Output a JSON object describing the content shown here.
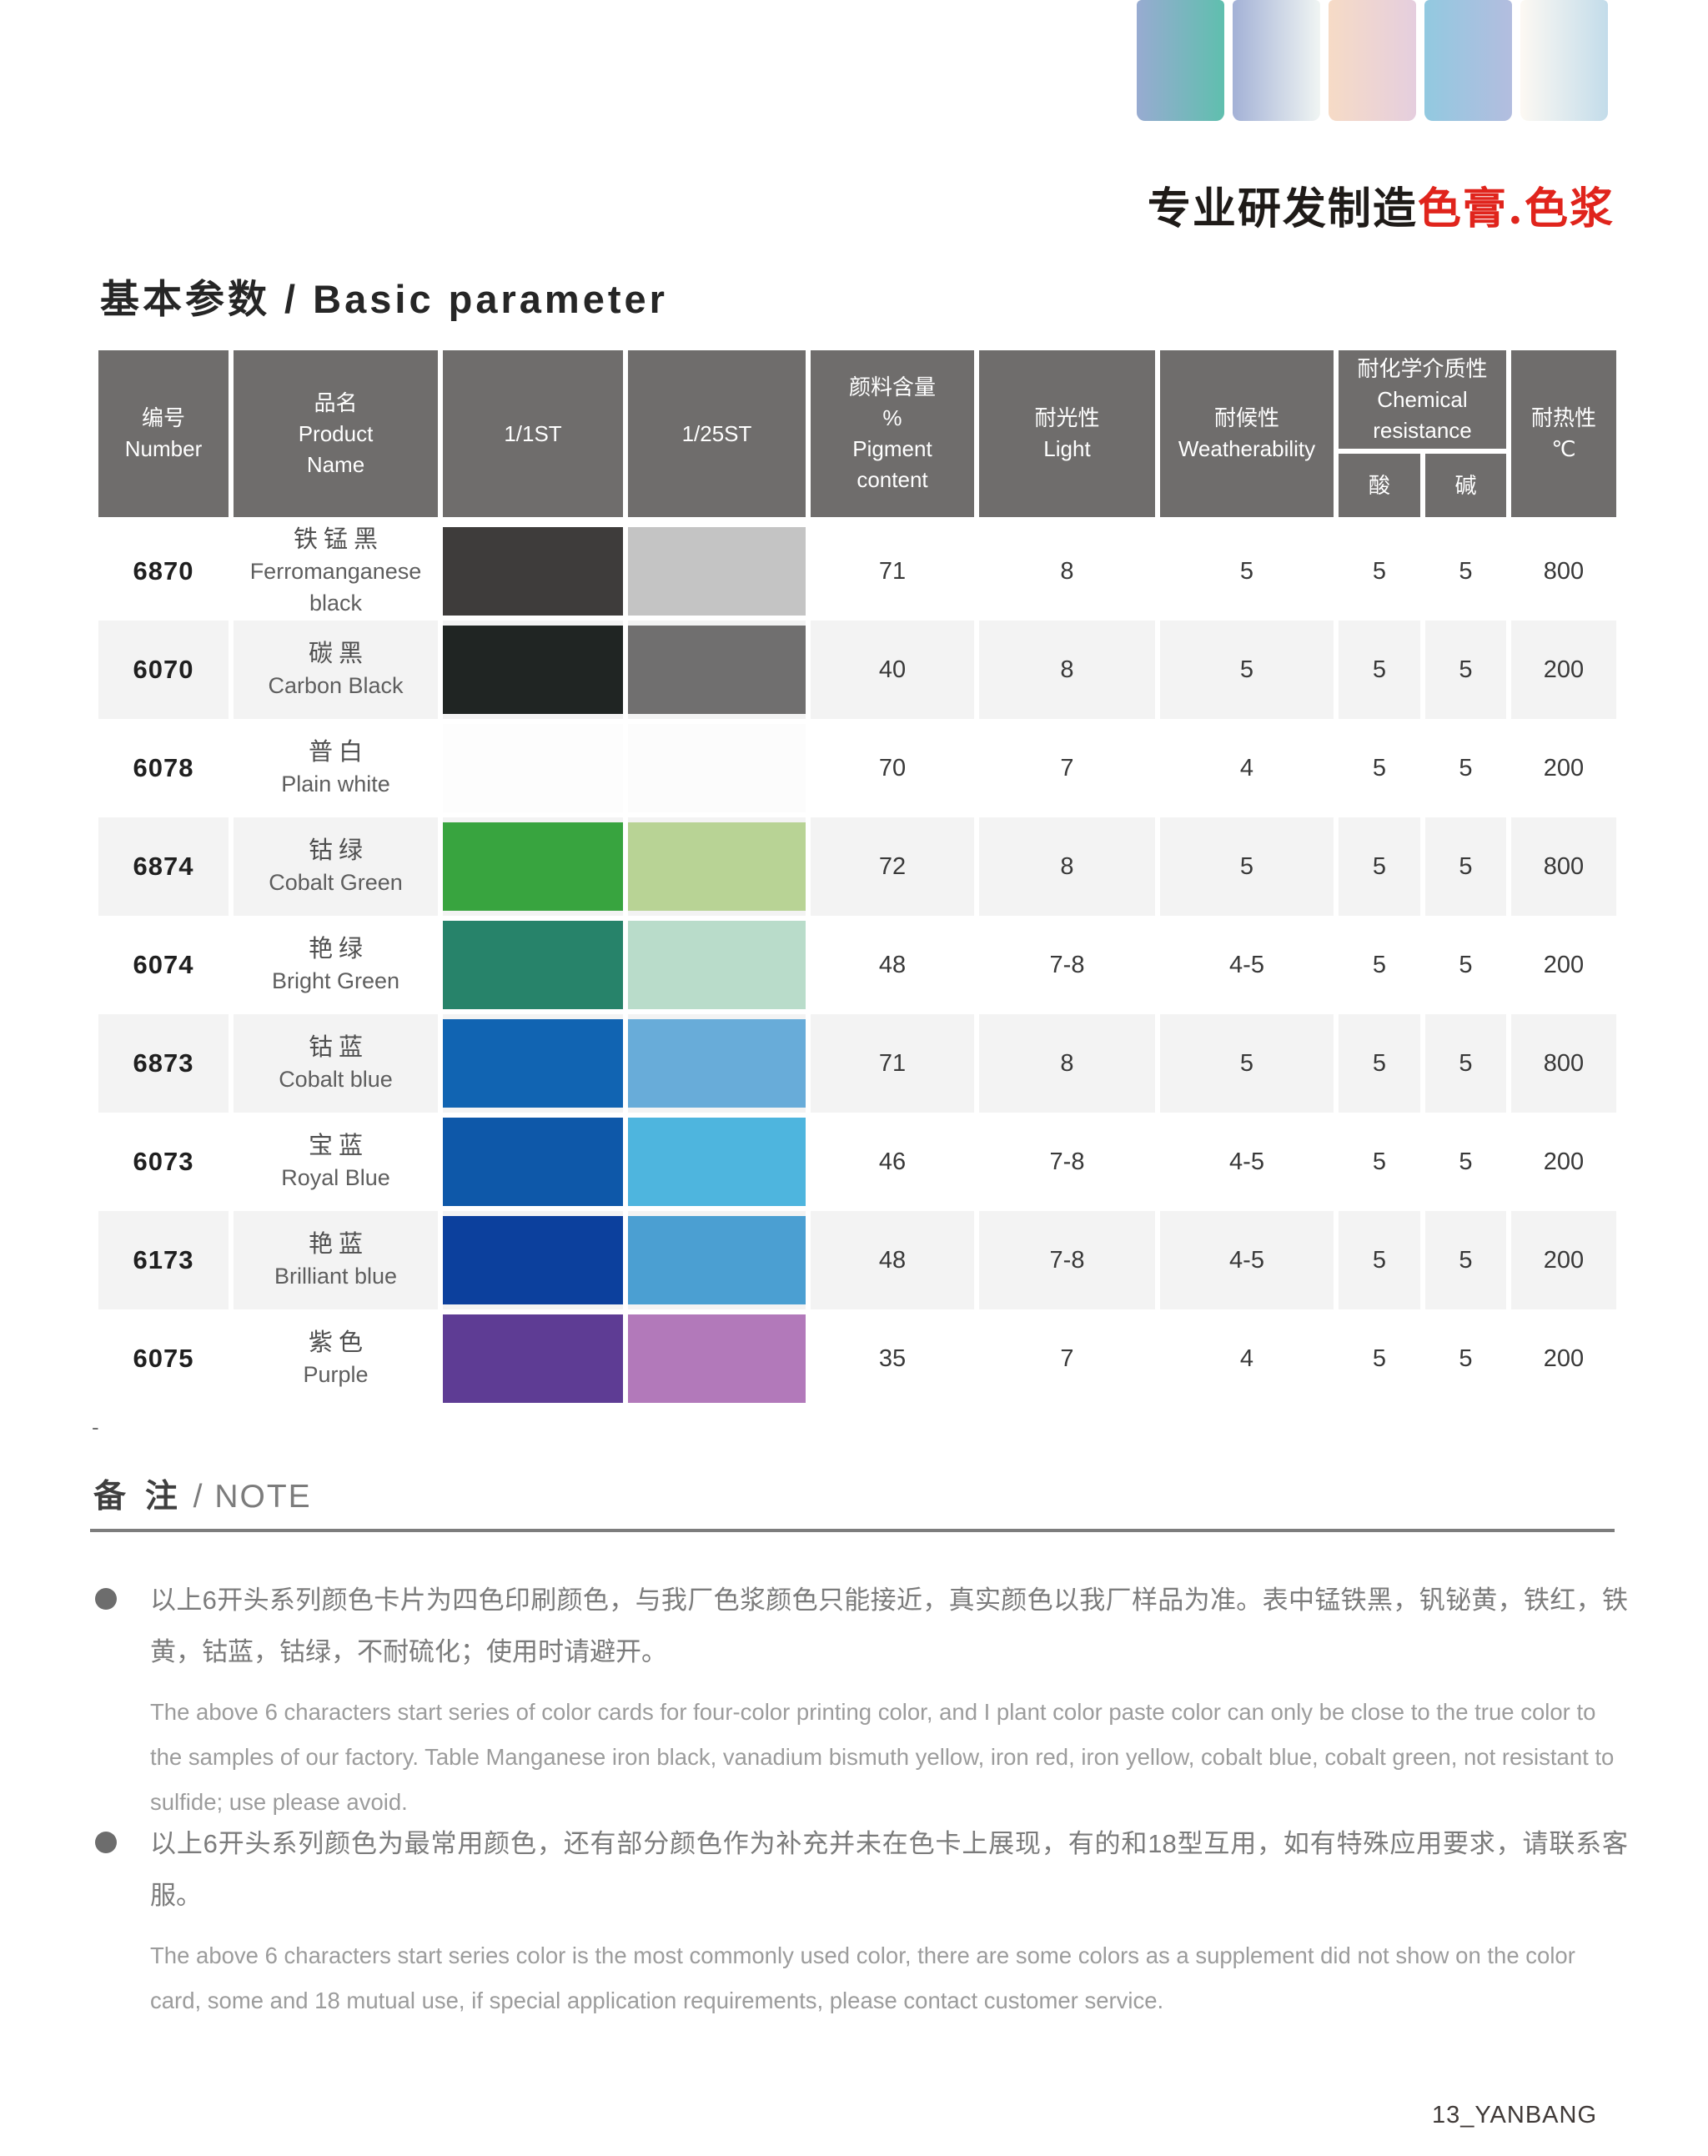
{
  "theme": {
    "header_bg": "#6f6d6c",
    "row_alt_bg": "#f3f3f3",
    "accent_red": "#e0241c",
    "rule_color": "#7d7d7d",
    "bullet_color": "#6d6d6d"
  },
  "decor": {
    "bars": [
      {
        "from": "#98abd1",
        "to": "#5fbfae"
      },
      {
        "from": "#a3b1d6",
        "to": "#f0f5f3"
      },
      {
        "from": "#f6dbc6",
        "to": "#e5cede"
      },
      {
        "from": "#92c9e0",
        "to": "#b3bddf"
      },
      {
        "from": "#fdf9f3",
        "to": "#c3dcea"
      }
    ]
  },
  "slogan": {
    "black_text": "专业研发制造",
    "red_text": "色膏.色浆"
  },
  "page_title": "基本参数 / Basic parameter",
  "table": {
    "header": {
      "number": "编号\nNumber",
      "product_name": "品名\nProduct\nName",
      "st_1_1": "1/1ST",
      "st_1_25": "1/25ST",
      "pigment": "颜料含量\n%\nPigment\ncontent",
      "light": "耐光性\nLight",
      "weatherability": "耐候性\nWeatherability",
      "chemical": "耐化学介质性\nChemical\nresistance",
      "acid": "酸",
      "alkali": "碱",
      "heat": "耐热性\n℃"
    },
    "rows": [
      {
        "number": "6870",
        "name_cn": "铁锰黑",
        "name_en": "Ferromanganese black",
        "swatch_1_1st": "#3e3c3b",
        "swatch_1_25st": "#c4c4c4",
        "pigment_content": "71",
        "light": "8",
        "weatherability": "5",
        "acid": "5",
        "alkali": "5",
        "heat": "800"
      },
      {
        "number": "6070",
        "name_cn": "碳黑",
        "name_en": "Carbon Black",
        "swatch_1_1st": "#202523",
        "swatch_1_25st": "#706f6f",
        "pigment_content": "40",
        "light": "8",
        "weatherability": "5",
        "acid": "5",
        "alkali": "5",
        "heat": "200"
      },
      {
        "number": "6078",
        "name_cn": "普白",
        "name_en": "Plain white",
        "swatch_1_1st": "#fdfdfd",
        "swatch_1_25st": "#fcfcfc",
        "pigment_content": "70",
        "light": "7",
        "weatherability": "4",
        "acid": "5",
        "alkali": "5",
        "heat": "200"
      },
      {
        "number": "6874",
        "name_cn": "钴绿",
        "name_en": "Cobalt Green",
        "swatch_1_1st": "#38a43f",
        "swatch_1_25st": "#b8d395",
        "pigment_content": "72",
        "light": "8",
        "weatherability": "5",
        "acid": "5",
        "alkali": "5",
        "heat": "800"
      },
      {
        "number": "6074",
        "name_cn": "艳绿",
        "name_en": "Bright Green",
        "swatch_1_1st": "#27836a",
        "swatch_1_25st": "#b9dcca",
        "pigment_content": "48",
        "light": "7-8",
        "weatherability": "4-5",
        "acid": "5",
        "alkali": "5",
        "heat": "200"
      },
      {
        "number": "6873",
        "name_cn": "钴蓝",
        "name_en": "Cobalt blue",
        "swatch_1_1st": "#1164b2",
        "swatch_1_25st": "#68acd9",
        "pigment_content": "71",
        "light": "8",
        "weatherability": "5",
        "acid": "5",
        "alkali": "5",
        "heat": "800"
      },
      {
        "number": "6073",
        "name_cn": "宝蓝",
        "name_en": "Royal Blue",
        "swatch_1_1st": "#0e58a9",
        "swatch_1_25st": "#4eb5de",
        "pigment_content": "46",
        "light": "7-8",
        "weatherability": "4-5",
        "acid": "5",
        "alkali": "5",
        "heat": "200"
      },
      {
        "number": "6173",
        "name_cn": "艳蓝",
        "name_en": "Brilliant blue",
        "swatch_1_1st": "#0c409d",
        "swatch_1_25st": "#4b9fd2",
        "pigment_content": "48",
        "light": "7-8",
        "weatherability": "4-5",
        "acid": "5",
        "alkali": "5",
        "heat": "200"
      },
      {
        "number": "6075",
        "name_cn": "紫色",
        "name_en": "Purple",
        "swatch_1_1st": "#5e3c94",
        "swatch_1_25st": "#b279ba",
        "pigment_content": "35",
        "light": "7",
        "weatherability": "4",
        "acid": "5",
        "alkali": "5",
        "heat": "200"
      }
    ]
  },
  "notes": {
    "dash": "-",
    "heading_cn": "备 注",
    "heading_en": " / NOTE",
    "items": [
      {
        "cn": "以上6开头系列颜色卡片为四色印刷颜色，与我厂色浆颜色只能接近，真实颜色以我厂样品为准。表中锰铁黑，钒铋黄，铁红，铁黄，钴蓝，钴绿，不耐硫化；使用时请避开。",
        "en": "The above 6 characters start series of color cards for four-color printing color, and I plant color paste color can only be close to the true color to the samples of our factory. Table Manganese iron black, vanadium bismuth yellow, iron red, iron yellow, cobalt blue, cobalt green, not resistant to sulfide; use please avoid."
      },
      {
        "cn": "以上6开头系列颜色为最常用颜色，还有部分颜色作为补充并未在色卡上展现，有的和18型互用，如有特殊应用要求，请联系客服。",
        "en": "The above 6 characters start series color is the most commonly used color, there are some colors as a supplement did not show on the color card, some and 18 mutual use, if special application requirements, please contact customer service."
      }
    ]
  },
  "footer": {
    "page_label": "13_YANBANG"
  }
}
